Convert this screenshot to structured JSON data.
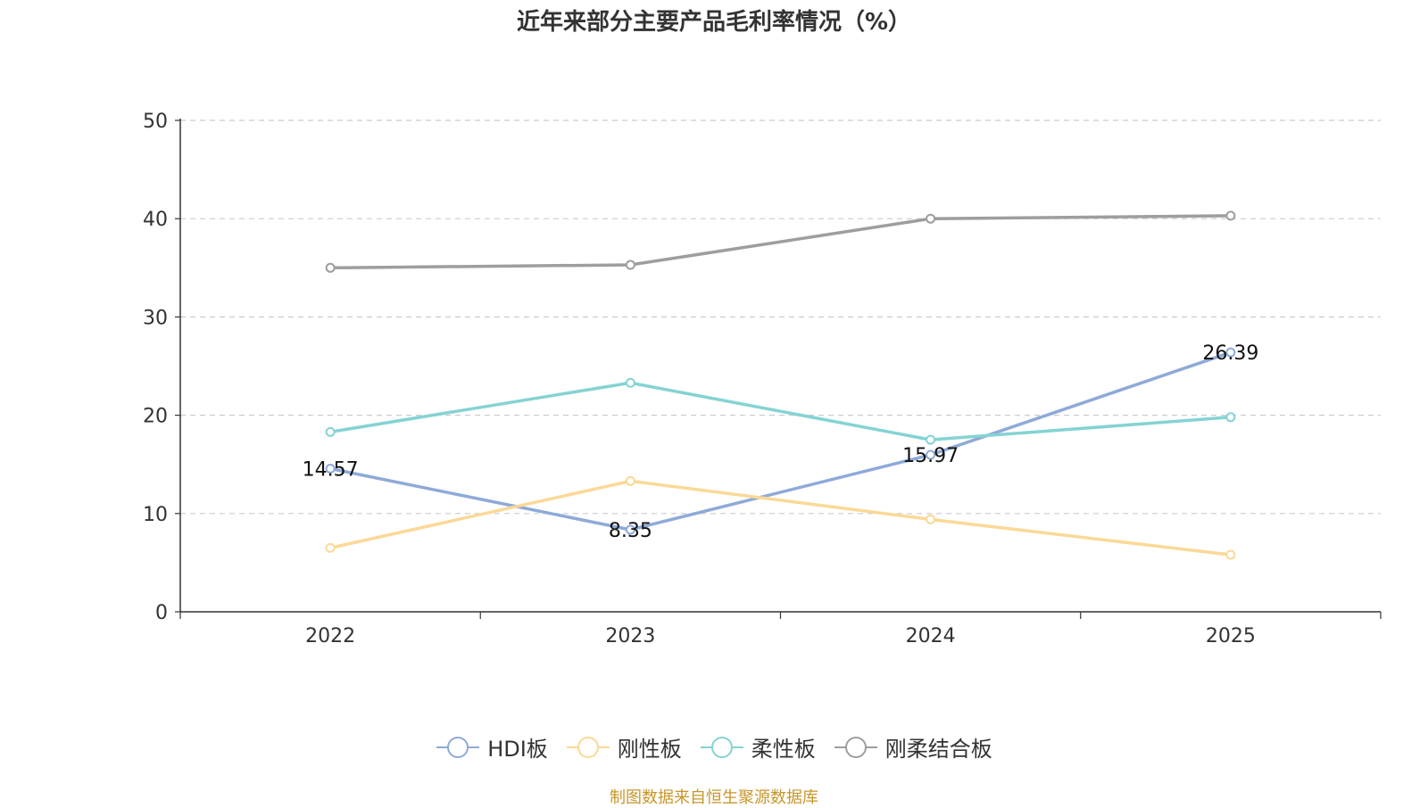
{
  "chart_data": {
    "type": "line",
    "title": "近年来部分主要产品毛利率情况（%）",
    "categories": [
      "2022",
      "2023",
      "2024",
      "2025"
    ],
    "xlabel": "",
    "ylabel": "",
    "ylim": [
      0,
      50
    ],
    "yticks": [
      0,
      10,
      20,
      30,
      40,
      50
    ],
    "grid": "horizontal dashed",
    "legend_position": "bottom",
    "series": [
      {
        "name": "HDI板",
        "color": "#8eaad8",
        "values": [
          14.57,
          8.35,
          15.97,
          26.39
        ],
        "data_labels": [
          "14.57",
          "8.35",
          "15.97",
          "26.39"
        ]
      },
      {
        "name": "刚性板",
        "color": "#fbd996",
        "values": [
          6.5,
          13.3,
          9.4,
          5.8
        ]
      },
      {
        "name": "柔性板",
        "color": "#85d3d3",
        "values": [
          18.3,
          23.3,
          17.5,
          19.8
        ]
      },
      {
        "name": "刚柔结合板",
        "color": "#9e9e9e",
        "values": [
          35.0,
          35.3,
          40.0,
          40.3
        ]
      }
    ]
  },
  "source_note": "制图数据来自恒生聚源数据库"
}
